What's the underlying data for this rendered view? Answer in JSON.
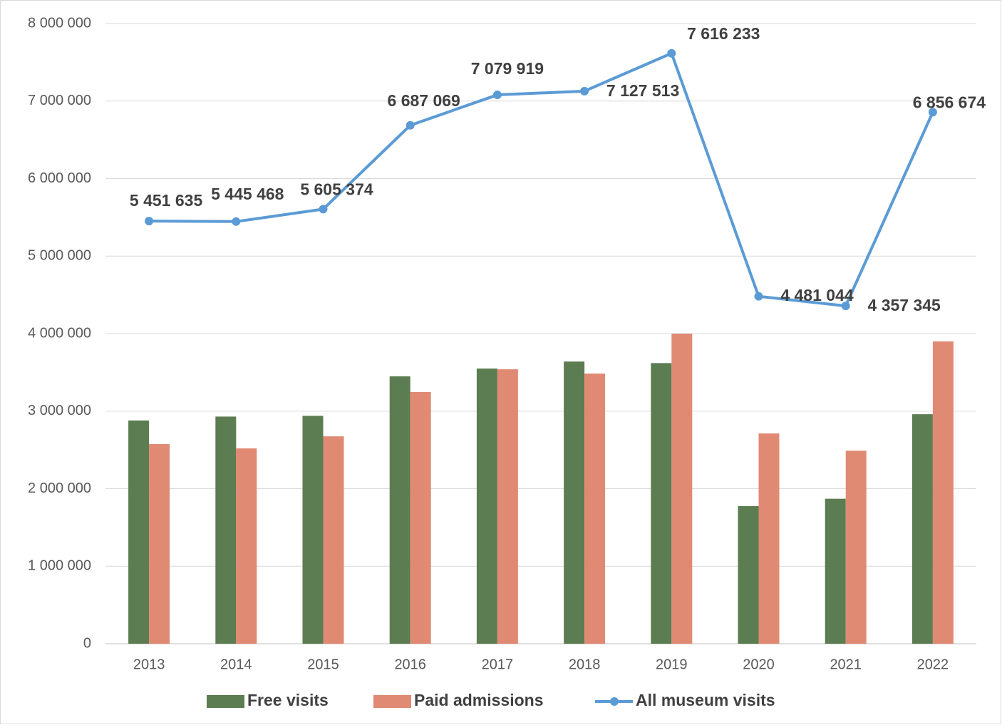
{
  "chart_data": {
    "type": "combo",
    "categories": [
      "2013",
      "2014",
      "2015",
      "2016",
      "2017",
      "2018",
      "2019",
      "2020",
      "2021",
      "2022"
    ],
    "series": [
      {
        "name": "Free visits",
        "type": "bar",
        "color": "#5b7d51",
        "values": [
          2880000,
          2930000,
          2940000,
          3450000,
          3550000,
          3640000,
          3620000,
          1775000,
          1870000,
          2960000
        ]
      },
      {
        "name": "Paid admissions",
        "type": "bar",
        "color": "#e08a74",
        "values": [
          2575000,
          2520000,
          2675000,
          3246000,
          3540000,
          3485000,
          4000000,
          2713000,
          2490000,
          3900000
        ]
      },
      {
        "name": "All museum visits",
        "type": "line",
        "color": "#5b9bd5",
        "values": [
          5451635,
          5445468,
          5605374,
          6687069,
          7079919,
          7127513,
          7616233,
          4481044,
          4357345,
          6856674
        ],
        "value_labels": [
          "5 451 635",
          "5 445 468",
          "5 605 374",
          "6 687 069",
          "7 079 919",
          "7 127 513",
          "7 616 233",
          "4 481 044",
          "4 357 345",
          "6 856 674"
        ]
      }
    ],
    "ylim": [
      0,
      8000000
    ],
    "yticks": [
      0,
      {
        "value": 1000000,
        "label": "1 000 000"
      },
      {
        "value": 2000000,
        "label": "2 000 000"
      },
      {
        "value": 3000000,
        "label": "3 000 000"
      },
      {
        "value": 4000000,
        "label": "4 000 000"
      },
      {
        "value": 5000000,
        "label": "5 000 000"
      },
      {
        "value": 6000000,
        "label": "6 000 000"
      },
      {
        "value": 7000000,
        "label": "7 000 000"
      },
      {
        "value": 8000000,
        "label": "8 000 000"
      }
    ],
    "grid": true,
    "legend": "bottom"
  }
}
